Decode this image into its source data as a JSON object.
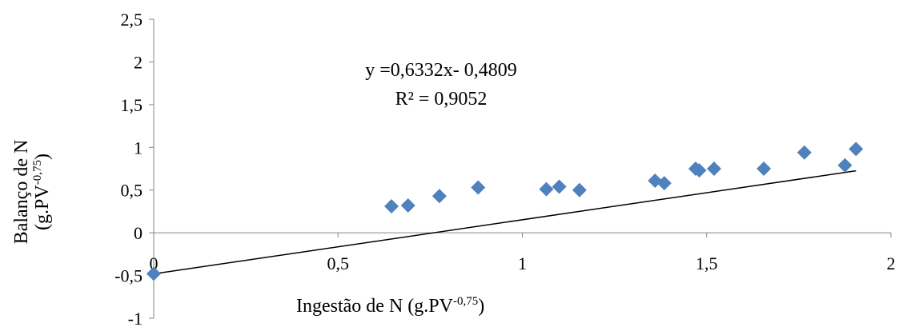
{
  "chart_data": {
    "type": "scatter",
    "xlabel": "Ingestão de N (g.PV",
    "xlabel_sup": "-0,75",
    "xlabel_close": ")",
    "ylabel_line1": "Balanço de N",
    "ylabel_line2": "(g.PV",
    "ylabel_sup": "-0,75",
    "ylabel_close": ")",
    "xlim": [
      0,
      2
    ],
    "ylim": [
      -1,
      2.5
    ],
    "x_ticks": [
      {
        "value": 0,
        "label": "0"
      },
      {
        "value": 0.5,
        "label": "0,5"
      },
      {
        "value": 1,
        "label": "1"
      },
      {
        "value": 1.5,
        "label": "1,5"
      },
      {
        "value": 2,
        "label": "2"
      }
    ],
    "y_ticks": [
      {
        "value": -1,
        "label": "-1"
      },
      {
        "value": -0.5,
        "label": "-0,5"
      },
      {
        "value": 0,
        "label": "0"
      },
      {
        "value": 0.5,
        "label": "0,5"
      },
      {
        "value": 1,
        "label": "1"
      },
      {
        "value": 1.5,
        "label": "1,5"
      },
      {
        "value": 2,
        "label": "2"
      },
      {
        "value": 2.5,
        "label": "2,5"
      }
    ],
    "grid": false,
    "marker_color": "#4f81bd",
    "marker_shape": "diamond",
    "points": [
      {
        "x": 0.0,
        "y": -0.48
      },
      {
        "x": 0.645,
        "y": 0.31
      },
      {
        "x": 0.69,
        "y": 0.32
      },
      {
        "x": 0.775,
        "y": 0.43
      },
      {
        "x": 0.88,
        "y": 0.53
      },
      {
        "x": 1.065,
        "y": 0.51
      },
      {
        "x": 1.1,
        "y": 0.54
      },
      {
        "x": 1.155,
        "y": 0.5
      },
      {
        "x": 1.36,
        "y": 0.61
      },
      {
        "x": 1.385,
        "y": 0.58
      },
      {
        "x": 1.47,
        "y": 0.75
      },
      {
        "x": 1.48,
        "y": 0.73
      },
      {
        "x": 1.52,
        "y": 0.75
      },
      {
        "x": 1.655,
        "y": 0.75
      },
      {
        "x": 1.765,
        "y": 0.94
      },
      {
        "x": 1.875,
        "y": 0.79
      },
      {
        "x": 1.905,
        "y": 0.98
      }
    ],
    "trendline": {
      "slope": 0.6332,
      "intercept": -0.4809,
      "x_range": [
        0,
        1.905
      ],
      "color": "#000000",
      "equation_label": "y =0,6332x- 0,4809",
      "r2_label": "R² = 0,9052"
    }
  }
}
